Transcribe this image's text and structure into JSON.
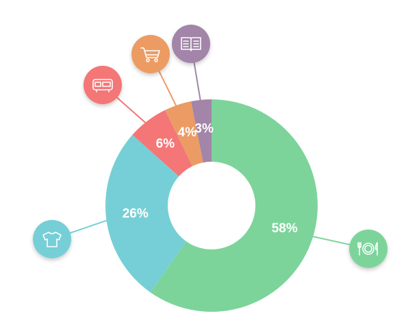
{
  "chart_data": {
    "type": "donut",
    "values": [
      58,
      26,
      6,
      4,
      3
    ],
    "value_labels": [
      "58%",
      "26%",
      "6%",
      "4%",
      "3%"
    ],
    "colors": [
      "#7dd49b",
      "#76cfd6",
      "#f47676",
      "#ec9b64",
      "#a285a8"
    ]
  }
}
